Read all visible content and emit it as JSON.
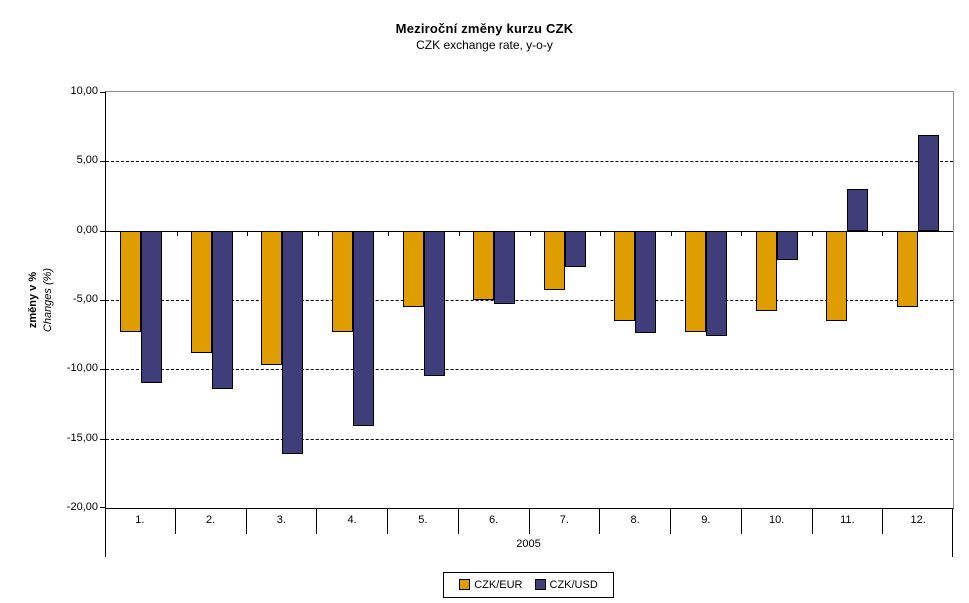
{
  "title": "Meziroční změny kurzu CZK",
  "subtitle": "CZK exchange rate, y-o-y",
  "y_axis": {
    "title_bold": "změny v %",
    "title_italic": "Changes (%)",
    "tick_labels": [
      "10,00",
      "5,00",
      "0,00",
      "-5,00",
      "-10,00",
      "-15,00",
      "-20,00"
    ]
  },
  "x_axis": {
    "year_label": "2005"
  },
  "colors": {
    "eur_bar": "#DF9D00",
    "usd_bar": "#3F3D7A",
    "bar_border": "#000000",
    "plot_border_gray": "#8c8c8c",
    "grid": "#000000"
  },
  "chart_data": {
    "type": "bar",
    "title": "Meziroční změny kurzu CZK",
    "subtitle": "CZK exchange rate, y-o-y",
    "categories": [
      "1.",
      "2.",
      "3.",
      "4.",
      "5.",
      "6.",
      "7.",
      "8.",
      "9.",
      "10.",
      "11.",
      "12."
    ],
    "xlabel": "2005",
    "ylabel": "změny v % / Changes (%)",
    "ylim": [
      -20,
      10
    ],
    "yticks": [
      10,
      5,
      0,
      -5,
      -10,
      -15,
      -20
    ],
    "grid": "horizontal-dashed",
    "legend_position": "bottom-center",
    "series": [
      {
        "name": "CZK/EUR",
        "color": "#DF9D00",
        "values": [
          -7.3,
          -8.8,
          -9.7,
          -7.3,
          -5.5,
          -5.0,
          -4.3,
          -6.5,
          -7.3,
          -5.8,
          -6.5,
          -5.5
        ]
      },
      {
        "name": "CZK/USD",
        "color": "#3F3D7A",
        "values": [
          -11.0,
          -11.4,
          -16.1,
          -14.1,
          -10.5,
          -5.3,
          -2.6,
          -7.4,
          -7.6,
          -2.1,
          3.0,
          6.9
        ]
      }
    ]
  }
}
